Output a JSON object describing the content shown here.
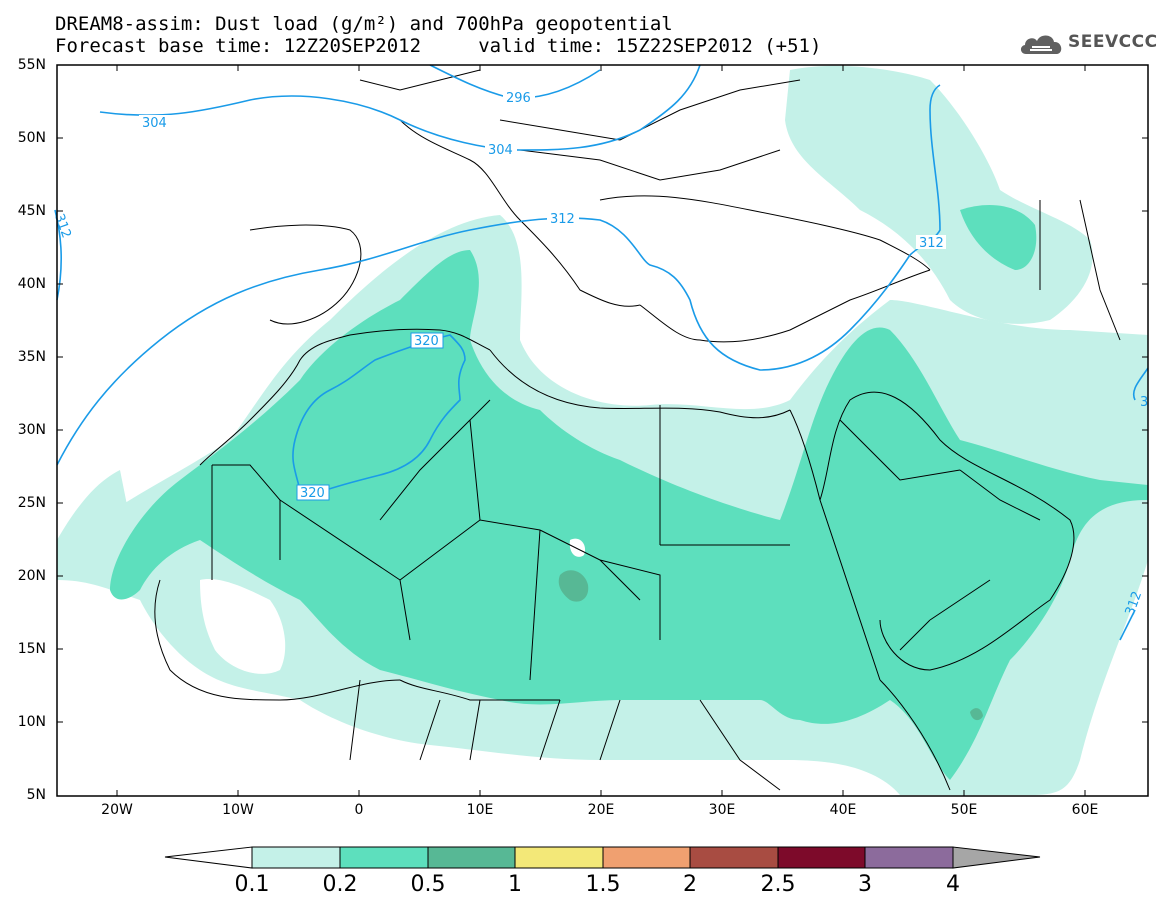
{
  "title": {
    "line1": "DREAM8-assim: Dust load (g/m²) and 700hPa geopotential",
    "line2": "Forecast base time: 12Z20SEP2012     valid time: 15Z22SEP2012 (+51)"
  },
  "logo": {
    "text": "SEEVCCC",
    "icon": "cloud-icon"
  },
  "axes": {
    "lat_labels": [
      "55N",
      "50N",
      "45N",
      "40N",
      "35N",
      "30N",
      "25N",
      "20N",
      "15N",
      "10N",
      "5N"
    ],
    "lon_labels": [
      "20W",
      "10W",
      "0",
      "10E",
      "20E",
      "30E",
      "40E",
      "50E",
      "60E"
    ]
  },
  "contours": [
    {
      "label": "304"
    },
    {
      "label": "296"
    },
    {
      "label": "304"
    },
    {
      "label": "312"
    },
    {
      "label": "312"
    },
    {
      "label": "312"
    },
    {
      "label": "320"
    },
    {
      "label": "320"
    },
    {
      "label": "312"
    },
    {
      "label": "3"
    }
  ],
  "colorbar": {
    "labels": [
      "0.1",
      "0.2",
      "0.5",
      "1",
      "1.5",
      "2",
      "2.5",
      "3",
      "4"
    ],
    "colors": [
      "#c4f1e8",
      "#5ddfbd",
      "#57b895",
      "#f3e878",
      "#f0a070",
      "#a84c42",
      "#7d0a2a",
      "#8c6b9c"
    ],
    "under_color": "#ffffff",
    "over_color": "#a6a6a6"
  },
  "colors": {
    "contour": "#1a9be8",
    "border": "#000000",
    "light": "#c4f1e8",
    "medium": "#5ddfbd",
    "dark": "#57b895"
  }
}
